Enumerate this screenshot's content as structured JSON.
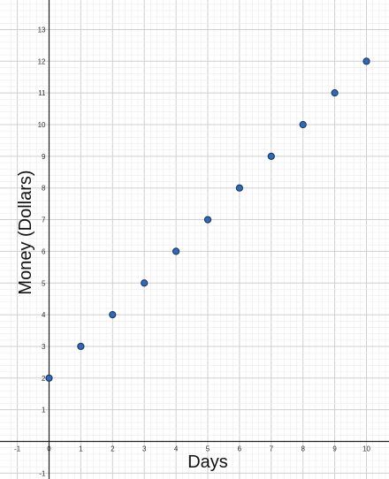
{
  "chart_data": {
    "type": "scatter",
    "xlabel": "Days",
    "ylabel": "Money (Dollars)",
    "xlim": [
      -1.3,
      10.8
    ],
    "ylim": [
      -1.1,
      14
    ],
    "x_ticks": [
      "-1",
      "0",
      "1",
      "2",
      "3",
      "4",
      "5",
      "6",
      "7",
      "8",
      "9",
      "10"
    ],
    "y_ticks": [
      "-1",
      "1",
      "2",
      "3",
      "4",
      "5",
      "6",
      "7",
      "8",
      "9",
      "10",
      "11",
      "12",
      "13"
    ],
    "grid": true,
    "series": [
      {
        "x": [
          0,
          1,
          2,
          3,
          4,
          5,
          6,
          7,
          8,
          9,
          10
        ],
        "y": [
          2,
          3,
          4,
          5,
          6,
          7,
          8,
          9,
          10,
          11,
          12
        ],
        "color": "#2d6ab8",
        "edge_color": "#1b2f55"
      }
    ],
    "colors": {
      "grid": "#d4d4d4",
      "axis": "#222222"
    }
  }
}
